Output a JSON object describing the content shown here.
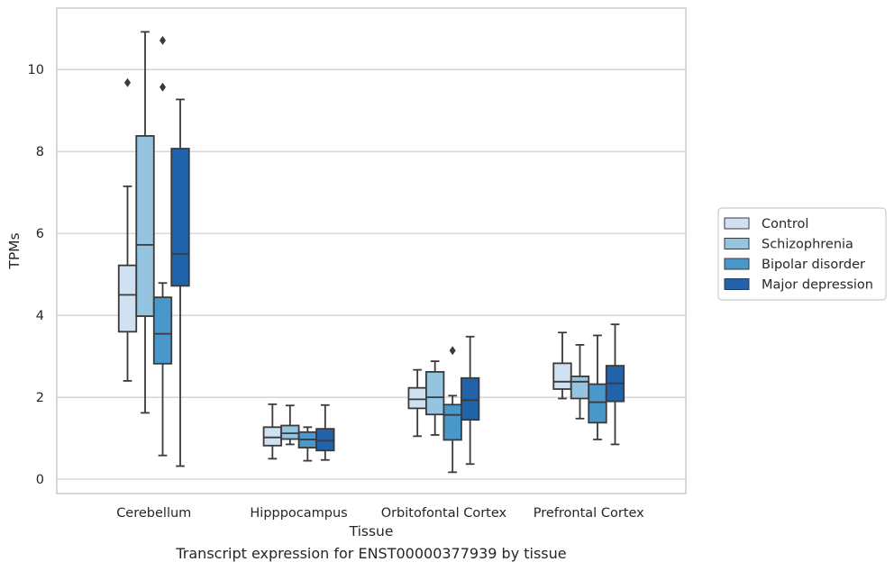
{
  "chart_data": {
    "type": "boxplot",
    "xlabel": "Tissue",
    "ylabel": "TPMs",
    "caption": "Transcript expression for ENST00000377939 by tissue",
    "ylim": [
      -0.35,
      11.5
    ],
    "yticks": [
      "0",
      "2",
      "4",
      "6",
      "8",
      "10"
    ],
    "grid": "horizontal",
    "legend_position": "right",
    "categories": [
      "Cerebellum",
      "Hipppocampus",
      "Orbitofontal Cortex",
      "Prefrontal Cortex"
    ],
    "series": [
      {
        "name": "Control",
        "color": "#d0e1f2",
        "boxes": [
          {
            "whislo": 2.4,
            "q1": 3.6,
            "med": 4.5,
            "q3": 5.22,
            "whishi": 7.15,
            "fliers": [
              9.68
            ]
          },
          {
            "whislo": 0.5,
            "q1": 0.82,
            "med": 1.02,
            "q3": 1.27,
            "whishi": 1.83,
            "fliers": []
          },
          {
            "whislo": 1.05,
            "q1": 1.73,
            "med": 1.95,
            "q3": 2.23,
            "whishi": 2.67,
            "fliers": []
          },
          {
            "whislo": 1.97,
            "q1": 2.2,
            "med": 2.38,
            "q3": 2.83,
            "whishi": 3.58,
            "fliers": []
          }
        ]
      },
      {
        "name": "Schizophrenia",
        "color": "#94c4df",
        "boxes": [
          {
            "whislo": 1.62,
            "q1": 3.98,
            "med": 5.72,
            "q3": 8.38,
            "whishi": 10.92,
            "fliers": []
          },
          {
            "whislo": 0.85,
            "q1": 0.98,
            "med": 1.12,
            "q3": 1.31,
            "whishi": 1.8,
            "fliers": []
          },
          {
            "whislo": 1.08,
            "q1": 1.58,
            "med": 2.0,
            "q3": 2.62,
            "whishi": 2.88,
            "fliers": []
          },
          {
            "whislo": 1.48,
            "q1": 1.97,
            "med": 2.38,
            "q3": 2.51,
            "whishi": 3.28,
            "fliers": []
          }
        ]
      },
      {
        "name": "Bipolar disorder",
        "color": "#4a98c9",
        "boxes": [
          {
            "whislo": 0.58,
            "q1": 2.82,
            "med": 3.55,
            "q3": 4.44,
            "whishi": 4.79,
            "fliers": [
              9.57,
              10.71
            ]
          },
          {
            "whislo": 0.45,
            "q1": 0.77,
            "med": 0.97,
            "q3": 1.15,
            "whishi": 1.27,
            "fliers": []
          },
          {
            "whislo": 0.17,
            "q1": 0.96,
            "med": 1.57,
            "q3": 1.82,
            "whishi": 2.04,
            "fliers": [
              3.14
            ]
          },
          {
            "whislo": 0.97,
            "q1": 1.38,
            "med": 1.88,
            "q3": 2.32,
            "whishi": 3.51,
            "fliers": []
          }
        ]
      },
      {
        "name": "Major depression",
        "color": "#2163aa",
        "boxes": [
          {
            "whislo": 0.32,
            "q1": 4.72,
            "med": 5.5,
            "q3": 8.07,
            "whishi": 9.27,
            "fliers": []
          },
          {
            "whislo": 0.47,
            "q1": 0.7,
            "med": 0.94,
            "q3": 1.23,
            "whishi": 1.81,
            "fliers": []
          },
          {
            "whislo": 0.37,
            "q1": 1.45,
            "med": 1.93,
            "q3": 2.47,
            "whishi": 3.48,
            "fliers": []
          },
          {
            "whislo": 0.85,
            "q1": 1.9,
            "med": 2.34,
            "q3": 2.77,
            "whishi": 3.78,
            "fliers": []
          }
        ]
      }
    ]
  }
}
